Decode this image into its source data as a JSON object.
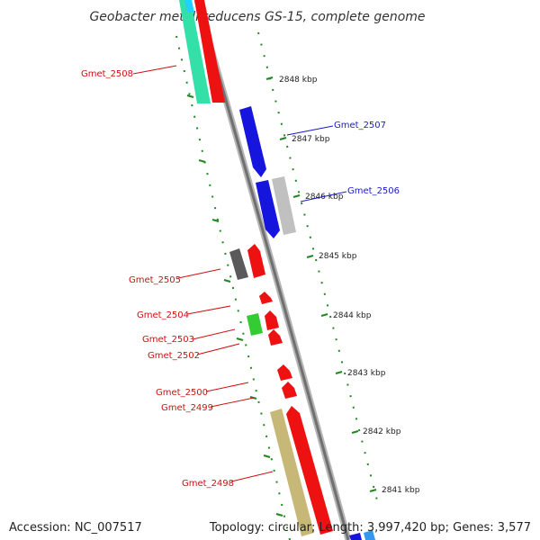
{
  "title": "Geobacter metallireducens GS-15, complete genome",
  "footer": {
    "accession": "Accession: NC_007517",
    "topology": "Topology: circular; Length: 3,997,420 bp; Genes: 3,577"
  },
  "colors": {
    "plus_label": "#1a1acc",
    "minus_label": "#cc1111",
    "tick": "#228822",
    "backbone": "#888888"
  },
  "kbp_ticks": [
    "2848 kbp",
    "2847 kbp",
    "2846 kbp",
    "2845 kbp",
    "2844 kbp",
    "2843 kbp",
    "2842 kbp",
    "2841 kbp"
  ],
  "gene_labels": [
    {
      "text": "Gmet_2508",
      "color": "#cc1111"
    },
    {
      "text": "Gmet_2507",
      "color": "#1a1acc"
    },
    {
      "text": "Gmet_2506",
      "color": "#1a1acc"
    },
    {
      "text": "Gmet_2505",
      "color": "#cc1111"
    },
    {
      "text": "Gmet_2504",
      "color": "#cc1111"
    },
    {
      "text": "Gmet_2503",
      "color": "#cc1111"
    },
    {
      "text": "Gmet_2502",
      "color": "#cc1111"
    },
    {
      "text": "Gmet_2500",
      "color": "#cc1111"
    },
    {
      "text": "Gmet_2499",
      "color": "#cc1111"
    },
    {
      "text": "Gmet_2498",
      "color": "#cc1111"
    }
  ]
}
